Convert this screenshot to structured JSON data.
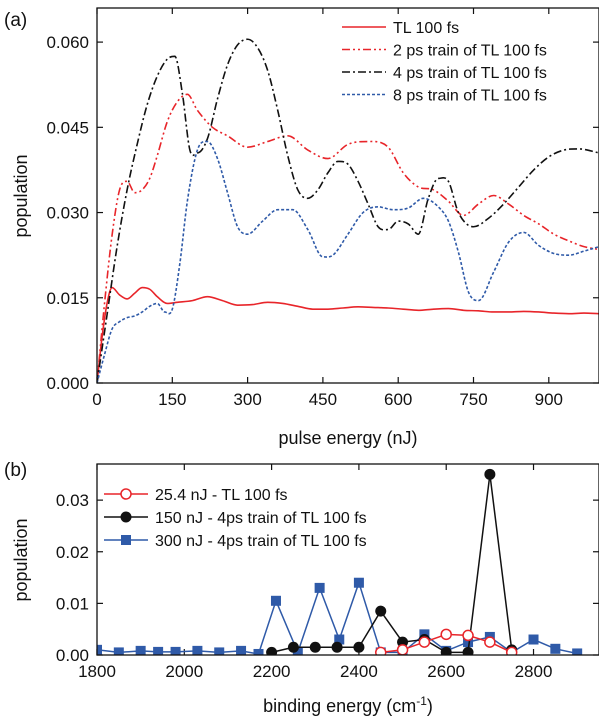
{
  "chart_data": [
    {
      "type": "line",
      "panel_label": "(a)",
      "xlabel": "pulse energy (nJ)",
      "ylabel": "population",
      "xlim": [
        0,
        1000
      ],
      "ylim": [
        0,
        0.066
      ],
      "xticks": [
        0,
        150,
        300,
        450,
        600,
        750,
        900
      ],
      "xtick_labels": [
        "0",
        "150",
        "300",
        "450",
        "600",
        "750",
        "900"
      ],
      "yticks": [
        0,
        0.015,
        0.03,
        0.045,
        0.06
      ],
      "ytick_labels": [
        "0.000",
        "0.015",
        "0.030",
        "0.045",
        "0.060"
      ],
      "legend_position": "top-right",
      "series": [
        {
          "name": "TL 100 fs",
          "color": "#e8252a",
          "dash": "solid",
          "x": [
            0,
            10,
            20,
            30,
            45,
            60,
            75,
            90,
            105,
            120,
            140,
            160,
            190,
            220,
            250,
            280,
            310,
            340,
            370,
            400,
            430,
            460,
            490,
            520,
            550,
            580,
            610,
            640,
            670,
            700,
            730,
            760,
            790,
            820,
            850,
            880,
            910,
            940,
            970,
            1000
          ],
          "y": [
            0,
            0.008,
            0.014,
            0.0168,
            0.0155,
            0.0148,
            0.0158,
            0.0168,
            0.0165,
            0.0152,
            0.014,
            0.0142,
            0.0145,
            0.0152,
            0.0145,
            0.0137,
            0.0138,
            0.0142,
            0.014,
            0.0135,
            0.013,
            0.013,
            0.0132,
            0.0134,
            0.0133,
            0.0132,
            0.013,
            0.0128,
            0.013,
            0.0131,
            0.0128,
            0.0127,
            0.0125,
            0.0125,
            0.0126,
            0.0125,
            0.0123,
            0.0122,
            0.0123,
            0.0122
          ]
        },
        {
          "name": "2 ps train of TL 100 fs",
          "color": "#e8252a",
          "dash": "dashdotdot",
          "x": [
            0,
            15,
            30,
            45,
            60,
            75,
            90,
            105,
            120,
            140,
            160,
            180,
            200,
            230,
            260,
            300,
            340,
            380,
            420,
            460,
            500,
            540,
            580,
            610,
            640,
            670,
            700,
            730,
            760,
            790,
            820,
            850,
            880,
            910,
            940,
            970,
            1000
          ],
          "y": [
            0,
            0.014,
            0.026,
            0.034,
            0.0355,
            0.0335,
            0.034,
            0.036,
            0.04,
            0.046,
            0.0495,
            0.0508,
            0.048,
            0.045,
            0.0435,
            0.0415,
            0.0425,
            0.0435,
            0.041,
            0.0395,
            0.042,
            0.0425,
            0.0415,
            0.037,
            0.0345,
            0.034,
            0.032,
            0.0295,
            0.0315,
            0.033,
            0.0315,
            0.0295,
            0.028,
            0.0262,
            0.025,
            0.024,
            0.0235
          ]
        },
        {
          "name": "4 ps train of TL 100 fs",
          "color": "#111111",
          "dash": "dashdot",
          "x": [
            0,
            20,
            40,
            60,
            80,
            100,
            120,
            140,
            155,
            170,
            185,
            200,
            220,
            240,
            260,
            280,
            300,
            320,
            340,
            360,
            380,
            400,
            420,
            440,
            460,
            480,
            500,
            520,
            540,
            560,
            580,
            600,
            620,
            640,
            660,
            680,
            700,
            720,
            750,
            780,
            810,
            840,
            870,
            900,
            930,
            960,
            1000
          ],
          "y": [
            0,
            0.012,
            0.024,
            0.034,
            0.042,
            0.049,
            0.054,
            0.057,
            0.0575,
            0.051,
            0.041,
            0.0405,
            0.043,
            0.05,
            0.056,
            0.0595,
            0.0605,
            0.059,
            0.055,
            0.048,
            0.04,
            0.034,
            0.0325,
            0.034,
            0.037,
            0.039,
            0.0385,
            0.0355,
            0.0315,
            0.0275,
            0.027,
            0.0285,
            0.028,
            0.0262,
            0.0325,
            0.036,
            0.0355,
            0.03,
            0.0275,
            0.029,
            0.0315,
            0.0345,
            0.0375,
            0.0398,
            0.041,
            0.0412,
            0.0405
          ]
        },
        {
          "name": "8 ps train of TL 100 fs",
          "color": "#2f5aa8",
          "dash": "dotted",
          "x": [
            0,
            15,
            30,
            45,
            60,
            75,
            90,
            105,
            120,
            135,
            150,
            165,
            180,
            200,
            220,
            240,
            260,
            280,
            300,
            330,
            360,
            390,
            420,
            450,
            470,
            500,
            530,
            560,
            590,
            620,
            650,
            680,
            700,
            720,
            740,
            760,
            790,
            820,
            850,
            880,
            910,
            940,
            970,
            1000
          ],
          "y": [
            0,
            0.005,
            0.0095,
            0.0108,
            0.0115,
            0.0118,
            0.0125,
            0.0135,
            0.014,
            0.0125,
            0.013,
            0.021,
            0.032,
            0.041,
            0.0425,
            0.0395,
            0.0335,
            0.0275,
            0.0262,
            0.0285,
            0.0305,
            0.0305,
            0.027,
            0.0222,
            0.0225,
            0.0262,
            0.03,
            0.031,
            0.0305,
            0.0308,
            0.0325,
            0.031,
            0.0285,
            0.023,
            0.016,
            0.0145,
            0.0195,
            0.0248,
            0.0265,
            0.0242,
            0.0228,
            0.0225,
            0.0232,
            0.024
          ]
        }
      ]
    },
    {
      "type": "line",
      "panel_label": "(b)",
      "xlabel": "binding energy (cm",
      "xlabel_sup": "-1",
      "xlabel_tail": ")",
      "ylabel": "population",
      "xlim": [
        1800,
        2950
      ],
      "ylim": [
        0,
        0.037
      ],
      "xticks": [
        1800,
        2000,
        2200,
        2400,
        2600,
        2800
      ],
      "xtick_labels": [
        "1800",
        "2000",
        "2200",
        "2400",
        "2600",
        "2800"
      ],
      "yticks": [
        0,
        0.01,
        0.02,
        0.03
      ],
      "ytick_labels": [
        "0.00",
        "0.01",
        "0.02",
        "0.03"
      ],
      "legend_position": "top-left",
      "series": [
        {
          "name": "25.4 nJ - TL 100 fs",
          "color": "#e8252a",
          "marker": "open-circle",
          "x": [
            2450,
            2500,
            2550,
            2600,
            2650,
            2700,
            2750
          ],
          "y": [
            0.0005,
            0.001,
            0.0025,
            0.004,
            0.0038,
            0.0025,
            0.0005
          ]
        },
        {
          "name": "150 nJ - 4ps train of TL 100 fs",
          "color": "#111111",
          "marker": "filled-circle",
          "x": [
            2200,
            2250,
            2300,
            2350,
            2400,
            2450,
            2500,
            2550,
            2600,
            2650,
            2700,
            2750
          ],
          "y": [
            0.0005,
            0.0015,
            0.0015,
            0.0015,
            0.0015,
            0.0085,
            0.0025,
            0.003,
            0.0005,
            0.0005,
            0.035,
            0.001
          ]
        },
        {
          "name": "300 nJ - 4ps train of TL 100 fs",
          "color": "#2f5aa8",
          "marker": "filled-square",
          "x": [
            1800,
            1850,
            1900,
            1940,
            1980,
            2030,
            2080,
            2130,
            2170,
            2210,
            2260,
            2310,
            2355,
            2400,
            2450,
            2500,
            2550,
            2600,
            2650,
            2700,
            2750,
            2800,
            2850,
            2900
          ],
          "y": [
            0.001,
            0.0005,
            0.0008,
            0.0006,
            0.0006,
            0.0008,
            0.0005,
            0.0008,
            0.0002,
            0.0105,
            0.0005,
            0.013,
            0.003,
            0.014,
            0.0005,
            0.0005,
            0.004,
            0.0008,
            0.0025,
            0.0035,
            0.0005,
            0.003,
            0.0012,
            0.0003
          ]
        }
      ]
    }
  ]
}
